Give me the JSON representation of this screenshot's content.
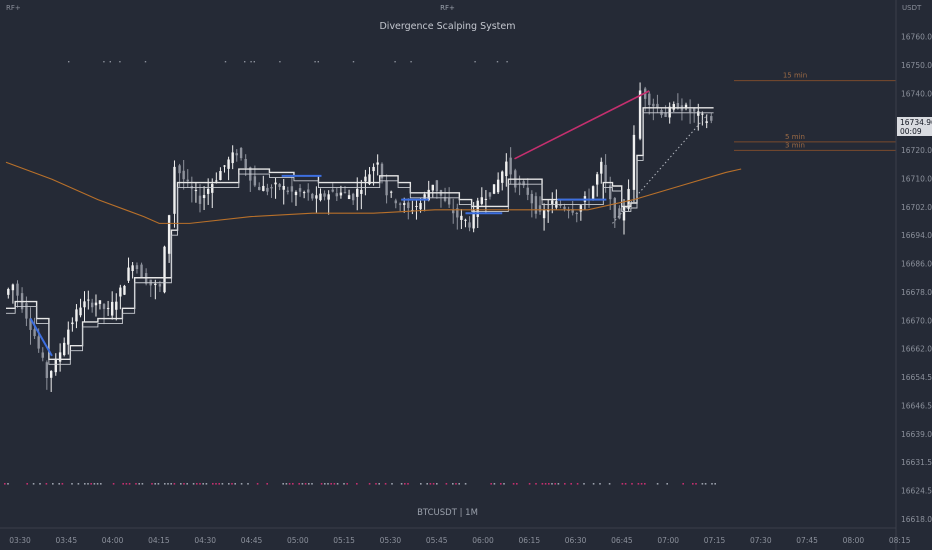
{
  "header": {
    "indicator_short": "RF+",
    "indicator_title": "Divergence Scalping System",
    "top_left_label": "RF+",
    "currency_label": "USDT",
    "symbol_label": "BTCUSDT | 1M"
  },
  "colors": {
    "background": "#252a36",
    "candle": "#f0f0f0",
    "trail_white": "#e6e6e6",
    "trail_blue": "#3d6fe0",
    "ema_orange": "#b8702a",
    "divergence_line": "#c42f6e",
    "dotted_line": "#b0b4bc",
    "level_line": "#7a4a2e",
    "axis_text": "#8b909b"
  },
  "chart_data": {
    "type": "candlestick",
    "title": "Divergence Scalping System",
    "symbol": "BTCUSDT",
    "timeframe": "1M",
    "y_axis": {
      "ticks": [
        16760.0,
        16750.0,
        16740.0,
        16730.0,
        16720.0,
        16710.0,
        16702.0,
        16694.0,
        16686.0,
        16678.0,
        16670.0,
        16662.0,
        16654.5,
        16646.5,
        16639.0,
        16631.5,
        16624.5,
        16618.0
      ],
      "tick_labels": [
        "16760.00",
        "16750.00",
        "16740.00",
        "16730.00",
        "16720.00",
        "16710.00",
        "16702.00",
        "16694.00",
        "16686.00",
        "16678.00",
        "16670.00",
        "16662.00",
        "16654.50",
        "16646.50",
        "16639.00",
        "16631.50",
        "16624.50",
        "16618.00"
      ],
      "unit": "USDT"
    },
    "x_axis": {
      "tick_labels": [
        "03:30",
        "03:45",
        "04:00",
        "04:15",
        "04:30",
        "04:45",
        "05:00",
        "05:15",
        "05:30",
        "05:45",
        "06:00",
        "06:15",
        "06:30",
        "06:45",
        "07:00",
        "07:15",
        "07:30",
        "07:45",
        "08:00",
        "08:15"
      ]
    },
    "last_price": {
      "value": 16734.96,
      "label": "16734.96",
      "countdown": "00:09"
    },
    "levels": [
      {
        "label": "15 min",
        "price": 16747.0
      },
      {
        "label": "5 min",
        "price": 16729.0
      },
      {
        "label": "3 min",
        "price": 16726.5
      }
    ],
    "series": [
      {
        "name": "close",
        "points": [
          [
            "03:30",
            16684
          ],
          [
            "03:33",
            16687
          ],
          [
            "03:36",
            16681
          ],
          [
            "03:40",
            16672
          ],
          [
            "03:44",
            16660
          ],
          [
            "03:47",
            16664
          ],
          [
            "03:51",
            16674
          ],
          [
            "03:55",
            16681
          ],
          [
            "04:00",
            16682
          ],
          [
            "04:04",
            16679
          ],
          [
            "04:08",
            16685
          ],
          [
            "04:12",
            16694
          ],
          [
            "04:15",
            16690
          ],
          [
            "04:18",
            16687
          ],
          [
            "04:21",
            16686
          ],
          [
            "04:24",
            16708
          ],
          [
            "04:26",
            16722
          ],
          [
            "04:30",
            16716
          ],
          [
            "04:34",
            16712
          ],
          [
            "04:38",
            16717
          ],
          [
            "04:42",
            16722
          ],
          [
            "04:46",
            16726
          ],
          [
            "04:49",
            16722
          ],
          [
            "04:52",
            16716
          ],
          [
            "04:56",
            16715
          ],
          [
            "05:00",
            16716
          ],
          [
            "05:04",
            16714
          ],
          [
            "05:08",
            16714
          ],
          [
            "05:12",
            16712
          ],
          [
            "05:16",
            16714
          ],
          [
            "05:20",
            16714
          ],
          [
            "05:24",
            16713
          ],
          [
            "05:28",
            16718
          ],
          [
            "05:32",
            16724
          ],
          [
            "05:35",
            16714
          ],
          [
            "05:38",
            16712
          ],
          [
            "05:42",
            16709
          ],
          [
            "05:46",
            16711
          ],
          [
            "05:50",
            16717
          ],
          [
            "05:54",
            16711
          ],
          [
            "05:58",
            16707
          ],
          [
            "06:02",
            16705
          ],
          [
            "06:06",
            16713
          ],
          [
            "06:10",
            16715
          ],
          [
            "06:14",
            16723
          ],
          [
            "06:17",
            16717
          ],
          [
            "06:21",
            16714
          ],
          [
            "06:25",
            16707
          ],
          [
            "06:29",
            16711
          ],
          [
            "06:33",
            16710
          ],
          [
            "06:37",
            16709
          ],
          [
            "06:41",
            16713
          ],
          [
            "06:45",
            16722
          ],
          [
            "06:48",
            16711
          ],
          [
            "06:51",
            16705
          ],
          [
            "06:54",
            16716
          ],
          [
            "06:56",
            16730
          ],
          [
            "06:58",
            16744
          ],
          [
            "07:02",
            16740
          ],
          [
            "07:06",
            16737
          ],
          [
            "07:10",
            16740
          ],
          [
            "07:14",
            16738
          ],
          [
            "07:18",
            16736
          ],
          [
            "07:21",
            16735
          ]
        ]
      },
      {
        "name": "trail_blue_segments",
        "points": [
          [
            "03:38",
            16677
          ],
          [
            "03:45",
            16666
          ],
          [
            "05:00",
            16719
          ],
          [
            "05:13",
            16719
          ],
          [
            "05:39",
            16712
          ],
          [
            "05:48",
            16712
          ],
          [
            "06:00",
            16708
          ],
          [
            "06:12",
            16708
          ],
          [
            "06:30",
            16712
          ],
          [
            "06:46",
            16712
          ]
        ]
      },
      {
        "name": "ema",
        "points": [
          [
            "03:30",
            16683
          ],
          [
            "03:45",
            16678
          ],
          [
            "04:00",
            16672
          ],
          [
            "04:15",
            16667
          ],
          [
            "04:20",
            16665
          ],
          [
            "04:30",
            16665
          ],
          [
            "04:50",
            16667
          ],
          [
            "05:10",
            16668
          ],
          [
            "05:30",
            16668
          ],
          [
            "05:50",
            16669
          ],
          [
            "06:15",
            16669
          ],
          [
            "06:40",
            16669
          ],
          [
            "06:55",
            16672
          ],
          [
            "07:10",
            16676
          ],
          [
            "07:25",
            16680
          ],
          [
            "07:30",
            16681
          ]
        ]
      }
    ],
    "divergence_line": {
      "from": [
        "06:16",
        16724
      ],
      "to": [
        "07:00",
        16744
      ]
    },
    "dotted_line": {
      "from": [
        "06:48",
        16705
      ],
      "to": [
        "07:19",
        16737
      ]
    },
    "grid": false
  }
}
